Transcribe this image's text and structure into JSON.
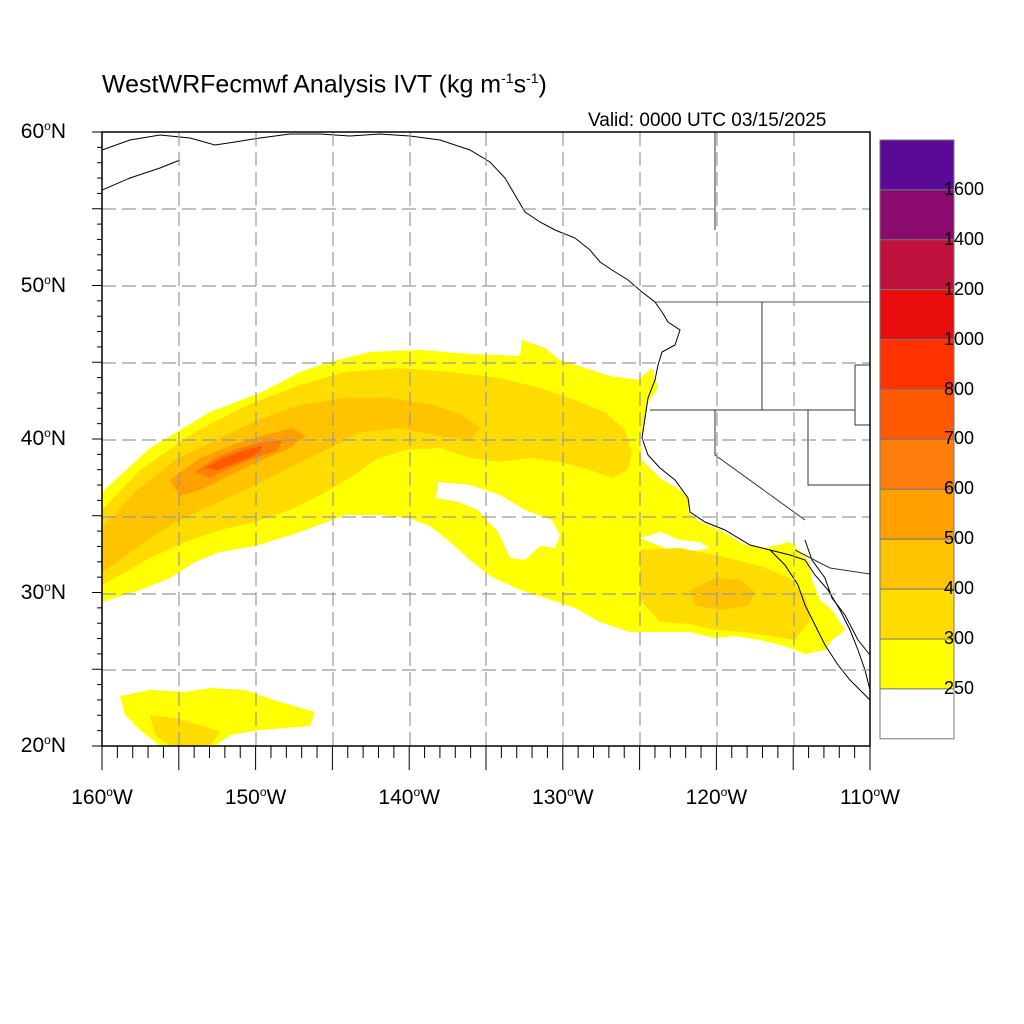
{
  "title": {
    "main": "WestWRFecmwf Analysis IVT (kg m",
    "exp1": "-1",
    "mid": "s",
    "exp2": "-1",
    "end": ")"
  },
  "valid_time": "Valid: 0000 UTC 03/15/2025",
  "map": {
    "lat_labels": [
      {
        "deg": "60",
        "hemi": "N",
        "lat": 60
      },
      {
        "deg": "50",
        "hemi": "N",
        "lat": 50
      },
      {
        "deg": "40",
        "hemi": "N",
        "lat": 40
      },
      {
        "deg": "30",
        "hemi": "N",
        "lat": 30
      },
      {
        "deg": "20",
        "hemi": "N",
        "lat": 20
      }
    ],
    "lon_labels": [
      {
        "deg": "160",
        "hemi": "W",
        "lon": -160
      },
      {
        "deg": "150",
        "hemi": "W",
        "lon": -150
      },
      {
        "deg": "140",
        "hemi": "W",
        "lon": -140
      },
      {
        "deg": "130",
        "hemi": "W",
        "lon": -130
      },
      {
        "deg": "120",
        "hemi": "W",
        "lon": -120
      },
      {
        "deg": "110",
        "hemi": "W",
        "lon": -110
      }
    ],
    "lat_range": [
      20,
      60
    ],
    "lon_range": [
      -160,
      -110
    ],
    "gridline_step_deg": 5,
    "gridline_style": "dashed grey"
  },
  "colorbar": {
    "labels": [
      "1600",
      "1400",
      "1200",
      "1000",
      "800",
      "700",
      "600",
      "500",
      "400",
      "300",
      "250"
    ],
    "colors": [
      "#5a0a96",
      "#8a0a6e",
      "#c0103c",
      "#e80c0c",
      "#ff3200",
      "#ff5a00",
      "#ff7d0a",
      "#ffa000",
      "#ffc300",
      "#ffdc00",
      "#ffff00",
      "#ffffff"
    ]
  }
}
